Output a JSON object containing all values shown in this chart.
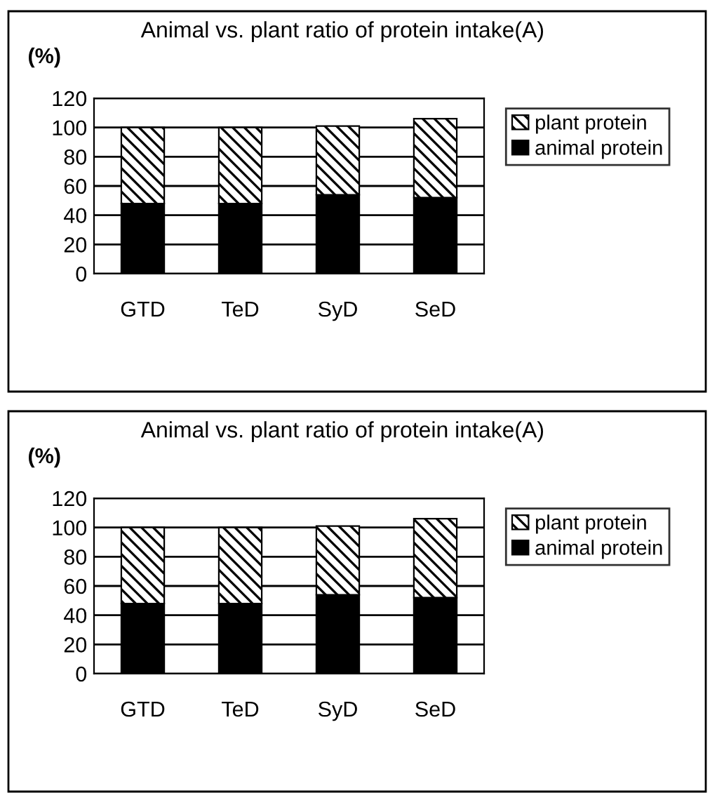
{
  "chart_data": [
    {
      "type": "bar",
      "title": "Animal vs. plant ratio of protein intake(A)",
      "ylabel": "(%)",
      "categories": [
        "GTD",
        "TeD",
        "SyD",
        "SeD"
      ],
      "stacked": true,
      "series": [
        {
          "name": "animal protein",
          "color": "#000000",
          "values": [
            48,
            48,
            54,
            52
          ]
        },
        {
          "name": "plant protein",
          "color": "#000000",
          "values": [
            52,
            52,
            47,
            54
          ]
        }
      ],
      "ylim": [
        0,
        120
      ],
      "yticks": [
        0,
        20,
        40,
        60,
        80,
        100,
        120
      ],
      "grid": "y",
      "legend": "top right"
    },
    {
      "type": "bar",
      "title": "Animal vs. plant ratio of protein intake(A)",
      "ylabel": "(%)",
      "categories": [
        "GTD",
        "TeD",
        "SyD",
        "SeD"
      ],
      "stacked": true,
      "series": [
        {
          "name": "animal protein",
          "color": "#000000",
          "values": [
            48,
            48,
            54,
            52
          ]
        },
        {
          "name": "plant protein",
          "color": "#000000",
          "values": [
            52,
            52,
            47,
            54
          ]
        }
      ],
      "ylim": [
        0,
        120
      ],
      "yticks": [
        0,
        20,
        40,
        60,
        80,
        100,
        120
      ],
      "grid": "y",
      "legend": "top right"
    }
  ]
}
